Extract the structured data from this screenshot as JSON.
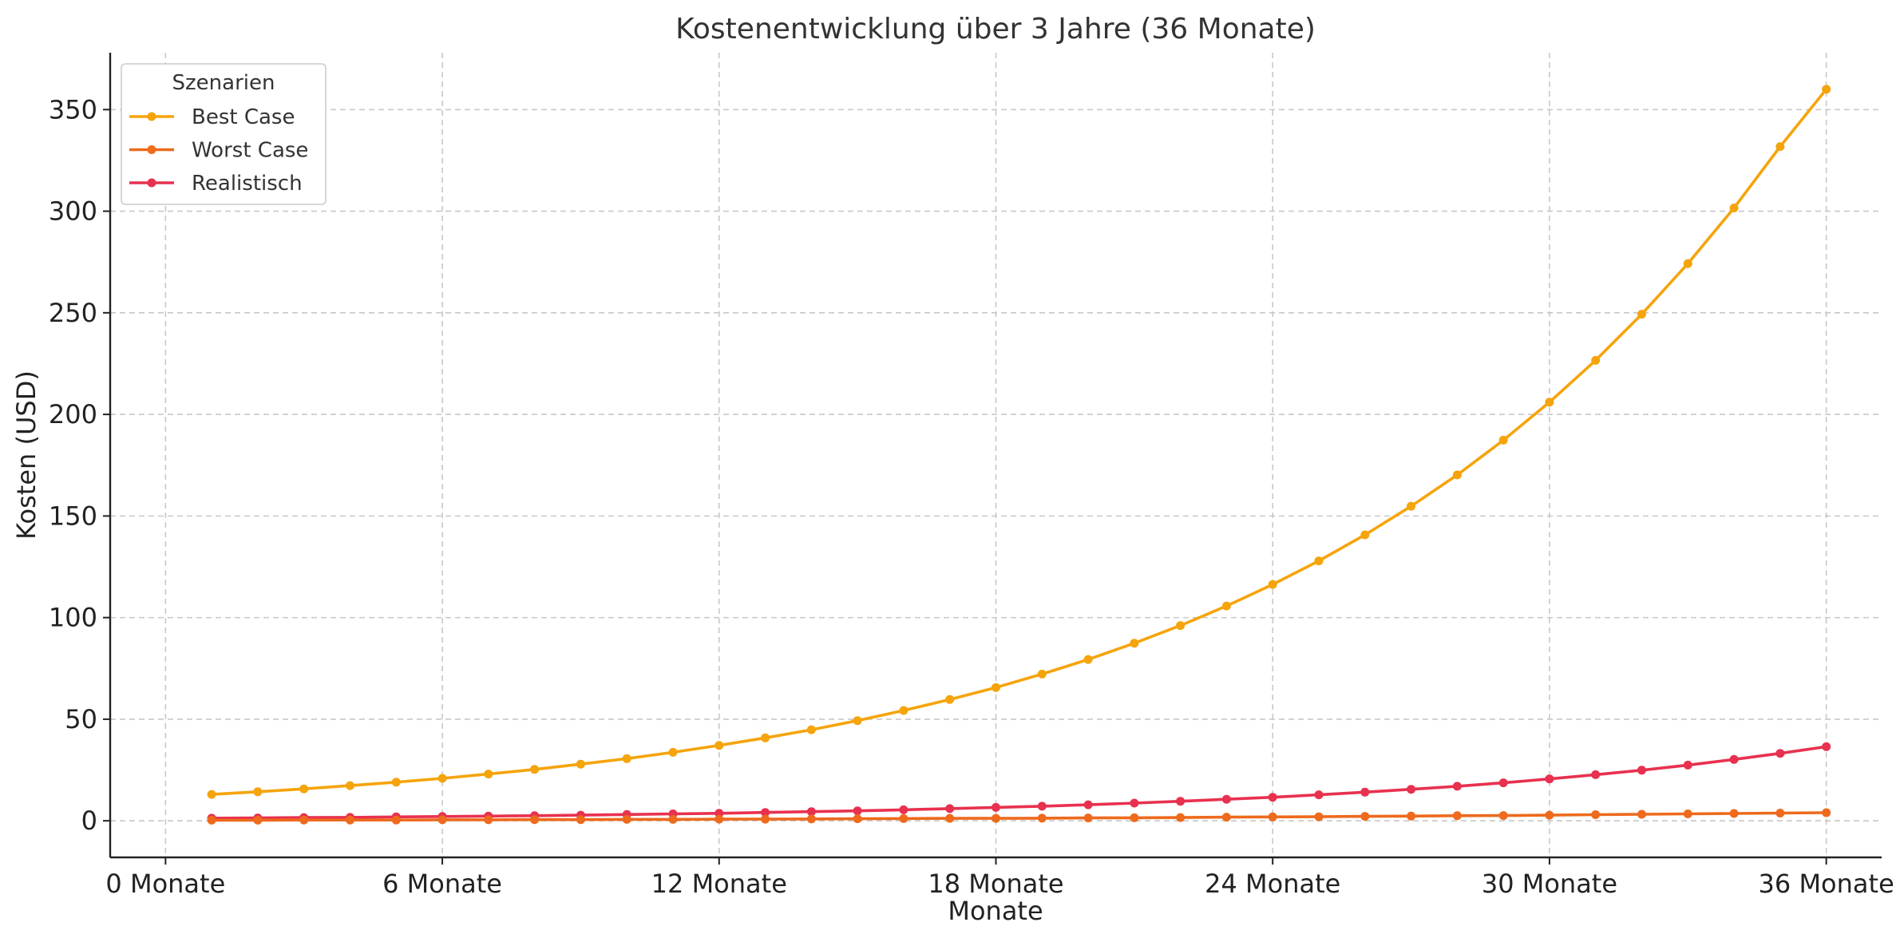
{
  "chart_data": {
    "type": "line",
    "title": "Kostenentwicklung über 3 Jahre (36 Monate)",
    "xlabel": "Monate",
    "ylabel": "Kosten (USD)",
    "xlim": [
      -1.2,
      37.2
    ],
    "ylim": [
      -18,
      378
    ],
    "xticks": [
      0,
      6,
      12,
      18,
      24,
      30,
      36
    ],
    "xtick_labels": [
      "0 Monate",
      "6 Monate",
      "12 Monate",
      "18 Monate",
      "24 Monate",
      "30 Monate",
      "36 Monate"
    ],
    "yticks": [
      0,
      50,
      100,
      150,
      200,
      250,
      300,
      350
    ],
    "ytick_labels": [
      "0",
      "50",
      "100",
      "150",
      "200",
      "250",
      "300",
      "350"
    ],
    "grid": true,
    "legend": {
      "title": "Szenarien",
      "placement": "top-left"
    },
    "x": [
      1,
      2,
      3,
      4,
      5,
      6,
      7,
      8,
      9,
      10,
      11,
      12,
      13,
      14,
      15,
      16,
      17,
      18,
      19,
      20,
      21,
      22,
      23,
      24,
      25,
      26,
      27,
      28,
      29,
      30,
      31,
      32,
      33,
      34,
      35,
      36
    ],
    "series": [
      {
        "name": "Best Case",
        "color": "#F5A40C",
        "values": [
          13.0,
          14.3,
          15.7,
          17.3,
          19.0,
          20.9,
          23.0,
          25.3,
          27.9,
          30.6,
          33.7,
          37.1,
          40.8,
          44.8,
          49.3,
          54.3,
          59.7,
          65.6,
          72.2,
          79.4,
          87.4,
          96.1,
          105.7,
          116.3,
          127.9,
          140.7,
          154.8,
          170.2,
          187.3,
          206.0,
          226.6,
          249.3,
          274.2,
          301.6,
          331.8,
          360.0
        ]
      },
      {
        "name": "Worst Case",
        "color": "#EE6A1D",
        "values": [
          0.3,
          0.3,
          0.4,
          0.4,
          0.4,
          0.5,
          0.5,
          0.6,
          0.6,
          0.7,
          0.7,
          0.8,
          0.8,
          0.9,
          1.0,
          1.1,
          1.2,
          1.2,
          1.3,
          1.4,
          1.5,
          1.6,
          1.8,
          1.9,
          2.0,
          2.2,
          2.3,
          2.5,
          2.6,
          2.8,
          3.0,
          3.2,
          3.4,
          3.6,
          3.8,
          4.0
        ]
      },
      {
        "name": "Realistisch",
        "color": "#E8314F",
        "values": [
          1.3,
          1.4,
          1.6,
          1.7,
          1.9,
          2.1,
          2.3,
          2.5,
          2.8,
          3.1,
          3.4,
          3.7,
          4.1,
          4.5,
          4.9,
          5.4,
          6.0,
          6.6,
          7.2,
          7.9,
          8.7,
          9.6,
          10.6,
          11.6,
          12.8,
          14.1,
          15.5,
          17.0,
          18.7,
          20.6,
          22.7,
          24.9,
          27.4,
          30.2,
          33.2,
          36.5
        ]
      }
    ]
  }
}
